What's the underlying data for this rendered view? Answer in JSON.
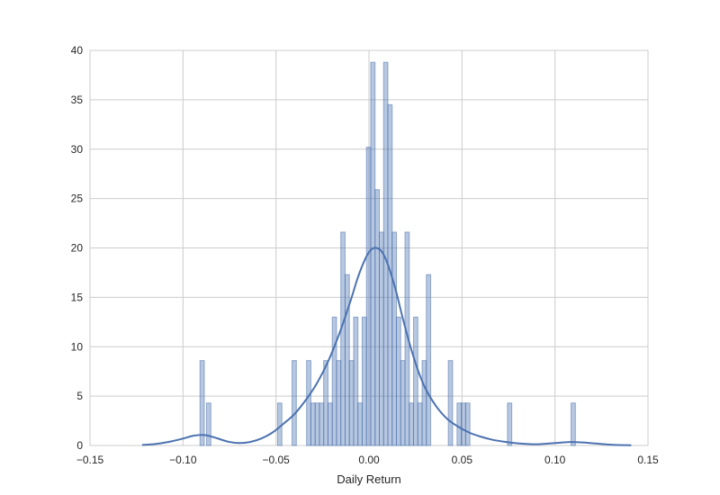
{
  "chart_data": {
    "type": "histogram",
    "xlabel": "Daily Return",
    "ylabel": "",
    "xlim": [
      -0.15,
      0.15
    ],
    "ylim": [
      0,
      40
    ],
    "xticks": [
      "−0.15",
      "−0.10",
      "−0.05",
      "0.00",
      "0.05",
      "0.10",
      "0.15"
    ],
    "xtick_values": [
      -0.15,
      -0.1,
      -0.05,
      0.0,
      0.05,
      0.1,
      0.15
    ],
    "yticks": [
      "0",
      "5",
      "10",
      "15",
      "20",
      "25",
      "30",
      "35",
      "40"
    ],
    "ytick_values": [
      0,
      5,
      10,
      15,
      20,
      25,
      30,
      35,
      40
    ],
    "grid": true,
    "colors": {
      "bar_fill": "#4c72b0",
      "bar_fill_opacity": 0.4,
      "bar_edge": "#4c72b0",
      "kde_line": "#4c72b0",
      "grid": "#cccccc"
    },
    "bin_width": 0.00232,
    "histogram": [
      {
        "x": -0.0897,
        "density": 8.6
      },
      {
        "x": -0.0862,
        "density": 4.3
      },
      {
        "x": -0.048,
        "density": 4.3
      },
      {
        "x": -0.0402,
        "density": 8.6
      },
      {
        "x": -0.0324,
        "density": 8.6
      },
      {
        "x": -0.0301,
        "density": 4.3
      },
      {
        "x": -0.0278,
        "density": 4.3
      },
      {
        "x": -0.0255,
        "density": 4.3
      },
      {
        "x": -0.0232,
        "density": 8.6
      },
      {
        "x": -0.0209,
        "density": 4.3
      },
      {
        "x": -0.0186,
        "density": 13.0
      },
      {
        "x": -0.0163,
        "density": 8.6
      },
      {
        "x": -0.014,
        "density": 21.6
      },
      {
        "x": -0.0117,
        "density": 17.3
      },
      {
        "x": -0.0094,
        "density": 8.6
      },
      {
        "x": -0.0071,
        "density": 13.0
      },
      {
        "x": -0.0048,
        "density": 4.3
      },
      {
        "x": -0.0025,
        "density": 13.0
      },
      {
        "x": -0.0002,
        "density": 30.2
      },
      {
        "x": 0.0021,
        "density": 38.8
      },
      {
        "x": 0.0044,
        "density": 25.9
      },
      {
        "x": 0.0067,
        "density": 21.6
      },
      {
        "x": 0.009,
        "density": 38.8
      },
      {
        "x": 0.0113,
        "density": 34.5
      },
      {
        "x": 0.0136,
        "density": 21.6
      },
      {
        "x": 0.0159,
        "density": 13.0
      },
      {
        "x": 0.0182,
        "density": 8.6
      },
      {
        "x": 0.0205,
        "density": 21.6
      },
      {
        "x": 0.0228,
        "density": 4.3
      },
      {
        "x": 0.0251,
        "density": 13.0
      },
      {
        "x": 0.0274,
        "density": 4.3
      },
      {
        "x": 0.0297,
        "density": 8.6
      },
      {
        "x": 0.032,
        "density": 17.3
      },
      {
        "x": 0.0438,
        "density": 8.6
      },
      {
        "x": 0.0485,
        "density": 4.3
      },
      {
        "x": 0.0508,
        "density": 4.3
      },
      {
        "x": 0.0531,
        "density": 4.3
      },
      {
        "x": 0.0756,
        "density": 4.3
      },
      {
        "x": 0.1098,
        "density": 4.3
      }
    ],
    "kde": [
      [
        -0.122,
        0.05
      ],
      [
        -0.115,
        0.15
      ],
      [
        -0.108,
        0.35
      ],
      [
        -0.1,
        0.7
      ],
      [
        -0.094,
        1.0
      ],
      [
        -0.088,
        1.05
      ],
      [
        -0.082,
        0.75
      ],
      [
        -0.076,
        0.4
      ],
      [
        -0.07,
        0.25
      ],
      [
        -0.064,
        0.35
      ],
      [
        -0.058,
        0.7
      ],
      [
        -0.052,
        1.3
      ],
      [
        -0.046,
        2.2
      ],
      [
        -0.04,
        3.2
      ],
      [
        -0.034,
        4.6
      ],
      [
        -0.028,
        6.3
      ],
      [
        -0.022,
        8.5
      ],
      [
        -0.016,
        11.3
      ],
      [
        -0.01,
        14.6
      ],
      [
        -0.006,
        17.0
      ],
      [
        -0.002,
        18.9
      ],
      [
        0.001,
        19.8
      ],
      [
        0.004,
        20.0
      ],
      [
        0.007,
        19.6
      ],
      [
        0.01,
        18.4
      ],
      [
        0.014,
        16.0
      ],
      [
        0.018,
        13.0
      ],
      [
        0.022,
        10.2
      ],
      [
        0.026,
        7.8
      ],
      [
        0.03,
        5.9
      ],
      [
        0.036,
        4.0
      ],
      [
        0.042,
        2.7
      ],
      [
        0.048,
        1.9
      ],
      [
        0.054,
        1.3
      ],
      [
        0.06,
        0.9
      ],
      [
        0.066,
        0.6
      ],
      [
        0.072,
        0.4
      ],
      [
        0.08,
        0.22
      ],
      [
        0.09,
        0.12
      ],
      [
        0.1,
        0.25
      ],
      [
        0.108,
        0.35
      ],
      [
        0.114,
        0.32
      ],
      [
        0.122,
        0.2
      ],
      [
        0.13,
        0.08
      ],
      [
        0.141,
        0.02
      ]
    ]
  }
}
